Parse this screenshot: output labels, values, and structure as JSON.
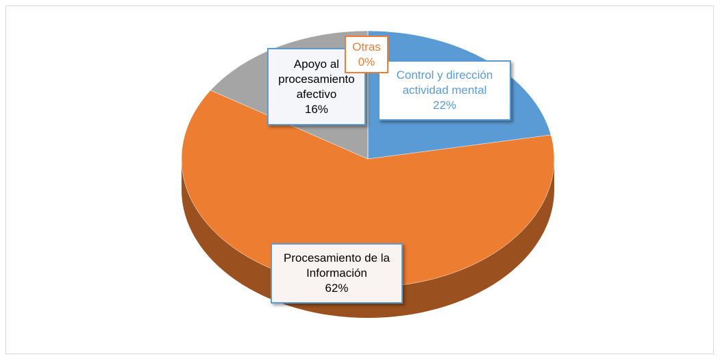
{
  "chart_data": {
    "type": "pie",
    "categories": [
      "Control y dirección actividad mental",
      "Procesamiento de la Información",
      "Apoyo al procesamiento afectivo",
      "Otras"
    ],
    "values": [
      22,
      62,
      16,
      0
    ],
    "value_labels": [
      "22%",
      "62%",
      "16%",
      "0%"
    ],
    "colors": [
      "#5b9bd5",
      "#ed7d31",
      "#a5a5a5",
      "#ffc000"
    ],
    "three_d": true
  }
}
